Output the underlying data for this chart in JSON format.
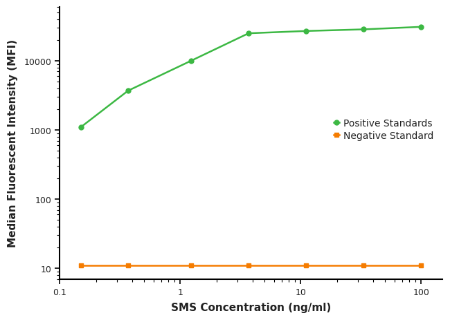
{
  "positive_x": [
    0.15,
    0.37,
    1.23,
    3.7,
    11.1,
    33.3,
    100
  ],
  "positive_y": [
    1100,
    3700,
    10000,
    25000,
    27000,
    28500,
    31000
  ],
  "negative_x": [
    0.15,
    0.37,
    1.23,
    3.7,
    11.1,
    33.3,
    100
  ],
  "negative_y": [
    11,
    11,
    11,
    11,
    11,
    11,
    11
  ],
  "positive_color": "#3cb843",
  "negative_color": "#f57c00",
  "positive_label": "Positive Standards",
  "negative_label": "Negative Standard",
  "xlabel": "SMS Concentration (ng/ml)",
  "ylabel": "Median Fluorescent Intensity (MFI)",
  "xlim": [
    0.1,
    150
  ],
  "ylim": [
    7,
    60000
  ],
  "marker_size": 5,
  "linewidth": 1.8,
  "background_color": "#ffffff",
  "yticks": [
    10,
    100,
    1000,
    10000
  ],
  "xticks": [
    0.1,
    1,
    10,
    100
  ],
  "xtick_labels": [
    "0.1",
    "1",
    "10",
    "100"
  ]
}
